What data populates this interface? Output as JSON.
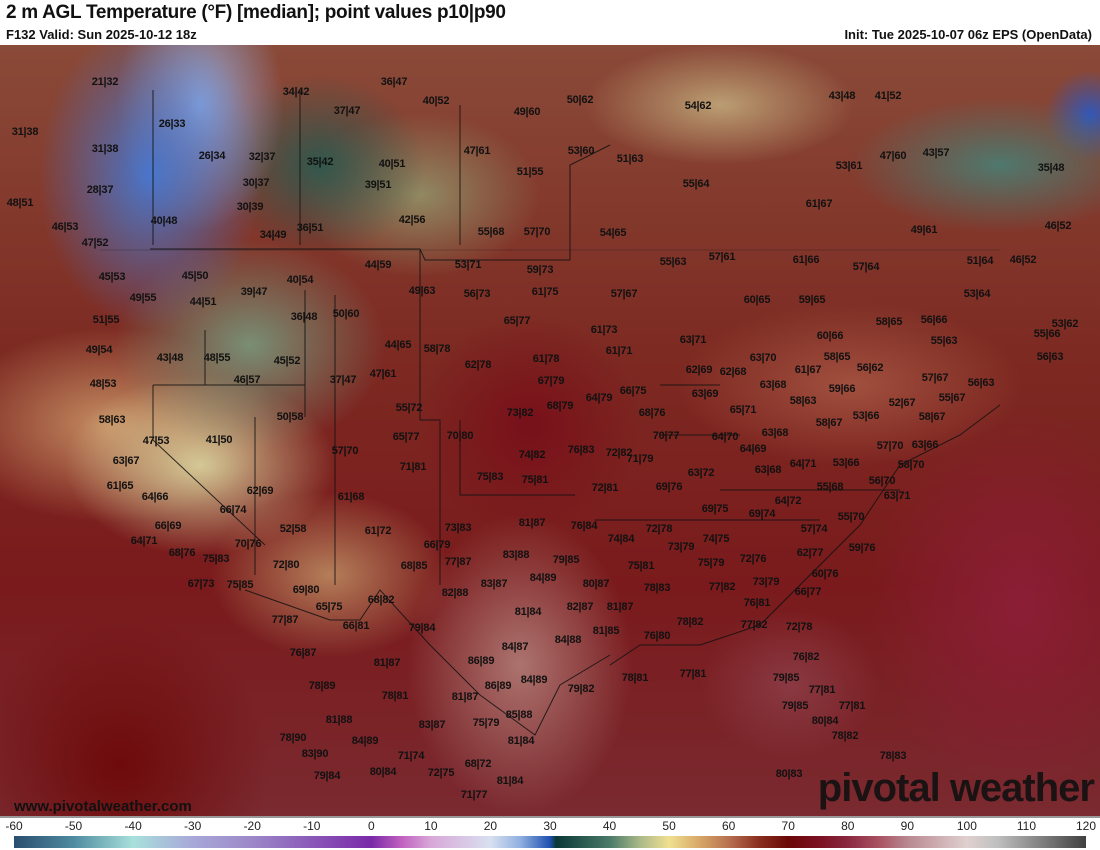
{
  "header": {
    "title": "2 m AGL Temperature (°F) [median]; point values p10|p90",
    "valid": "F132 Valid: Sun 2025-10-12 18z",
    "init": "Init: Tue 2025-10-07 06z EPS (OpenData)"
  },
  "footer": {
    "website": "www.pivotalweather.com",
    "logo_text": "pivotal weather"
  },
  "colorbar": {
    "ticks": [
      "-60",
      "-50",
      "-40",
      "-30",
      "-20",
      "-10",
      "0",
      "10",
      "20",
      "30",
      "40",
      "50",
      "60",
      "70",
      "80",
      "90",
      "100",
      "110",
      "120"
    ],
    "stops": [
      {
        "value": -60,
        "color": "#2a4e6e"
      },
      {
        "value": -50,
        "color": "#4f8ba0"
      },
      {
        "value": -40,
        "color": "#a8e0dc"
      },
      {
        "value": -30,
        "color": "#a8a8d8"
      },
      {
        "value": -20,
        "color": "#9c88c8"
      },
      {
        "value": -10,
        "color": "#8a58b8"
      },
      {
        "value": 0,
        "color": "#7a2aa8"
      },
      {
        "value": 5,
        "color": "#c060c0"
      },
      {
        "value": 10,
        "color": "#d8a8d8"
      },
      {
        "value": 20,
        "color": "#d8e0f0"
      },
      {
        "value": 25,
        "color": "#90b0e0"
      },
      {
        "value": 30,
        "color": "#2050b0"
      },
      {
        "value": 31,
        "color": "#0a3838"
      },
      {
        "value": 40,
        "color": "#4a7a68"
      },
      {
        "value": 45,
        "color": "#a8b888"
      },
      {
        "value": 50,
        "color": "#f0e090"
      },
      {
        "value": 55,
        "color": "#d8a868"
      },
      {
        "value": 60,
        "color": "#b87050"
      },
      {
        "value": 65,
        "color": "#8a3020"
      },
      {
        "value": 70,
        "color": "#6a0808"
      },
      {
        "value": 75,
        "color": "#7a1020"
      },
      {
        "value": 80,
        "color": "#8a2840"
      },
      {
        "value": 85,
        "color": "#a85060"
      },
      {
        "value": 90,
        "color": "#b88890"
      },
      {
        "value": 100,
        "color": "#e0d0d0"
      },
      {
        "value": 105,
        "color": "#c0c0c0"
      },
      {
        "value": 120,
        "color": "#404040"
      }
    ]
  },
  "map": {
    "point_values": [
      "21|32",
      "26|33",
      "31|38",
      "31|38",
      "34|42",
      "37|47",
      "26|34",
      "32|37",
      "35|42",
      "30|37",
      "28|37",
      "30|39",
      "48|51",
      "40|48",
      "46|53",
      "34|49",
      "36|51",
      "47|52",
      "40|54",
      "45|50",
      "39|47",
      "45|53",
      "49|55",
      "44|51",
      "36|47",
      "40|52",
      "49|60",
      "50|62",
      "54|62",
      "43|48",
      "41|52",
      "47|61",
      "53|60",
      "51|63",
      "51|55",
      "40|51",
      "39|51",
      "55|64",
      "53|61",
      "47|60",
      "43|57",
      "35|48",
      "42|56",
      "55|68",
      "57|70",
      "54|65",
      "61|67",
      "49|61",
      "46|52",
      "55|63",
      "57|61",
      "61|66",
      "57|64",
      "51|64",
      "46|52",
      "44|59",
      "53|71",
      "59|73",
      "49|63",
      "56|73",
      "61|75",
      "57|67",
      "53|64",
      "50|60",
      "36|48",
      "51|55",
      "65|77",
      "53|62",
      "55|66",
      "61|73",
      "44|65",
      "58|78",
      "49|54",
      "43|48",
      "48|55",
      "61|71",
      "56|63",
      "45|52",
      "61|78",
      "62|78",
      "46|57",
      "47|61",
      "37|47",
      "48|53",
      "67|79",
      "57|67",
      "56|63",
      "55|67",
      "73|82",
      "68|79",
      "64|79",
      "66|75",
      "68|76",
      "55|72",
      "50|58",
      "58|63",
      "47|53",
      "41|50",
      "65|77",
      "70|80",
      "70|77",
      "72|82",
      "76|83",
      "74|82",
      "57|70",
      "71|81",
      "63|67",
      "75|83",
      "75|81",
      "71|79",
      "61|65",
      "64|66",
      "62|69",
      "61|68",
      "72|81",
      "69|76",
      "66|74",
      "81|87",
      "76|84",
      "69|75",
      "69|74",
      "66|69",
      "52|58",
      "73|83",
      "61|72",
      "64|71",
      "70|76",
      "68|76",
      "75|83",
      "66|79",
      "72|78",
      "74|84",
      "73|79",
      "74|75",
      "72|76",
      "77|87",
      "83|88",
      "79|85",
      "72|80",
      "68|85",
      "67|73",
      "75|85",
      "69|80",
      "84|89",
      "83|87",
      "80|87",
      "75|81",
      "75|79",
      "77|82",
      "73|79",
      "78|83",
      "82|88",
      "68|82",
      "65|75",
      "81|84",
      "82|87",
      "81|87",
      "77|87",
      "66|81",
      "79|84",
      "76|81",
      "78|82",
      "77|82",
      "72|78",
      "84|88",
      "81|85",
      "76|80",
      "84|87",
      "76|87",
      "81|87",
      "86|89",
      "76|82",
      "79|85",
      "78|81",
      "77|81",
      "84|89",
      "86|89",
      "79|82",
      "78|89",
      "78|81",
      "81|87",
      "77|81",
      "79|85",
      "81|88",
      "85|88",
      "77|81",
      "83|87",
      "75|79",
      "80|84",
      "78|90",
      "84|89",
      "81|84",
      "78|82",
      "83|90",
      "71|74",
      "68|72",
      "78|83",
      "79|84",
      "80|84",
      "72|75",
      "81|84",
      "80|83",
      "71|77",
      "63|71",
      "62|69",
      "62|68",
      "63|68",
      "63|69",
      "63|70",
      "61|67",
      "58|65",
      "56|62",
      "60|65",
      "59|65",
      "60|66",
      "58|65",
      "56|66",
      "55|63",
      "59|66",
      "58|63",
      "65|71",
      "52|67",
      "53|66",
      "58|67",
      "58|67",
      "64|70",
      "63|68",
      "64|69",
      "57|70",
      "63|66",
      "64|71",
      "53|66",
      "63|72",
      "63|68",
      "58|70",
      "55|68",
      "56|70",
      "63|71",
      "64|72",
      "55|70",
      "57|74",
      "59|76",
      "62|77",
      "60|76",
      "66|77"
    ]
  }
}
